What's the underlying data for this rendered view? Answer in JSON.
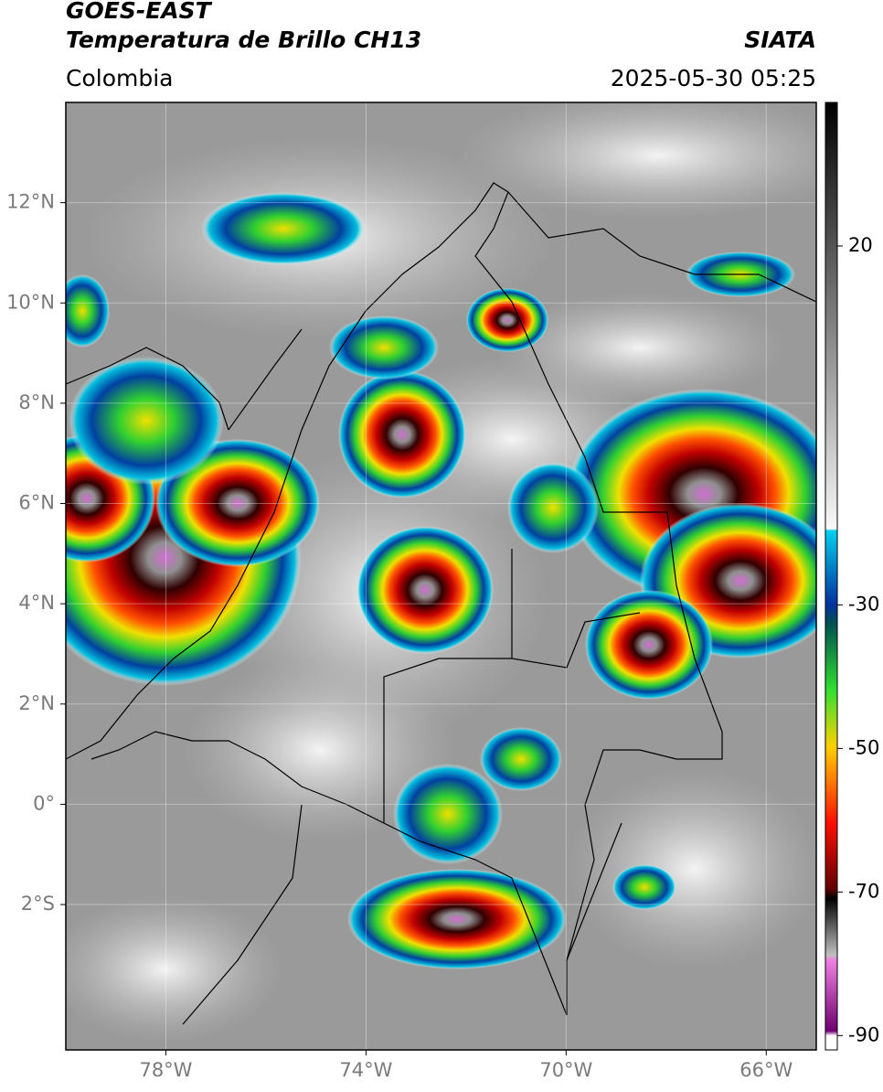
{
  "header": {
    "title": "GOES-EAST",
    "subtitle": "Temperatura de Brillo CH13",
    "source": "SIATA",
    "region": "Colombia",
    "timestamp": "2025-05-30 05:25"
  },
  "map": {
    "xlim": [
      -80,
      -65
    ],
    "ylim": [
      -4.9,
      14
    ],
    "xticks": [
      {
        "value": -78,
        "label": "78°W"
      },
      {
        "value": -74,
        "label": "74°W"
      },
      {
        "value": -70,
        "label": "70°W"
      },
      {
        "value": -66,
        "label": "66°W"
      }
    ],
    "yticks": [
      {
        "value": 12,
        "label": "12°N"
      },
      {
        "value": 10,
        "label": "10°N"
      },
      {
        "value": 8,
        "label": "8°N"
      },
      {
        "value": 6,
        "label": "6°N"
      },
      {
        "value": 4,
        "label": "4°N"
      },
      {
        "value": 2,
        "label": "2°N"
      },
      {
        "value": 0,
        "label": "0°"
      },
      {
        "value": -2,
        "label": "2°S"
      }
    ],
    "grid": true
  },
  "colorbar": {
    "lim": [
      -92,
      40
    ],
    "ticks": [
      20,
      -30,
      -50,
      -70,
      -90
    ]
  }
}
